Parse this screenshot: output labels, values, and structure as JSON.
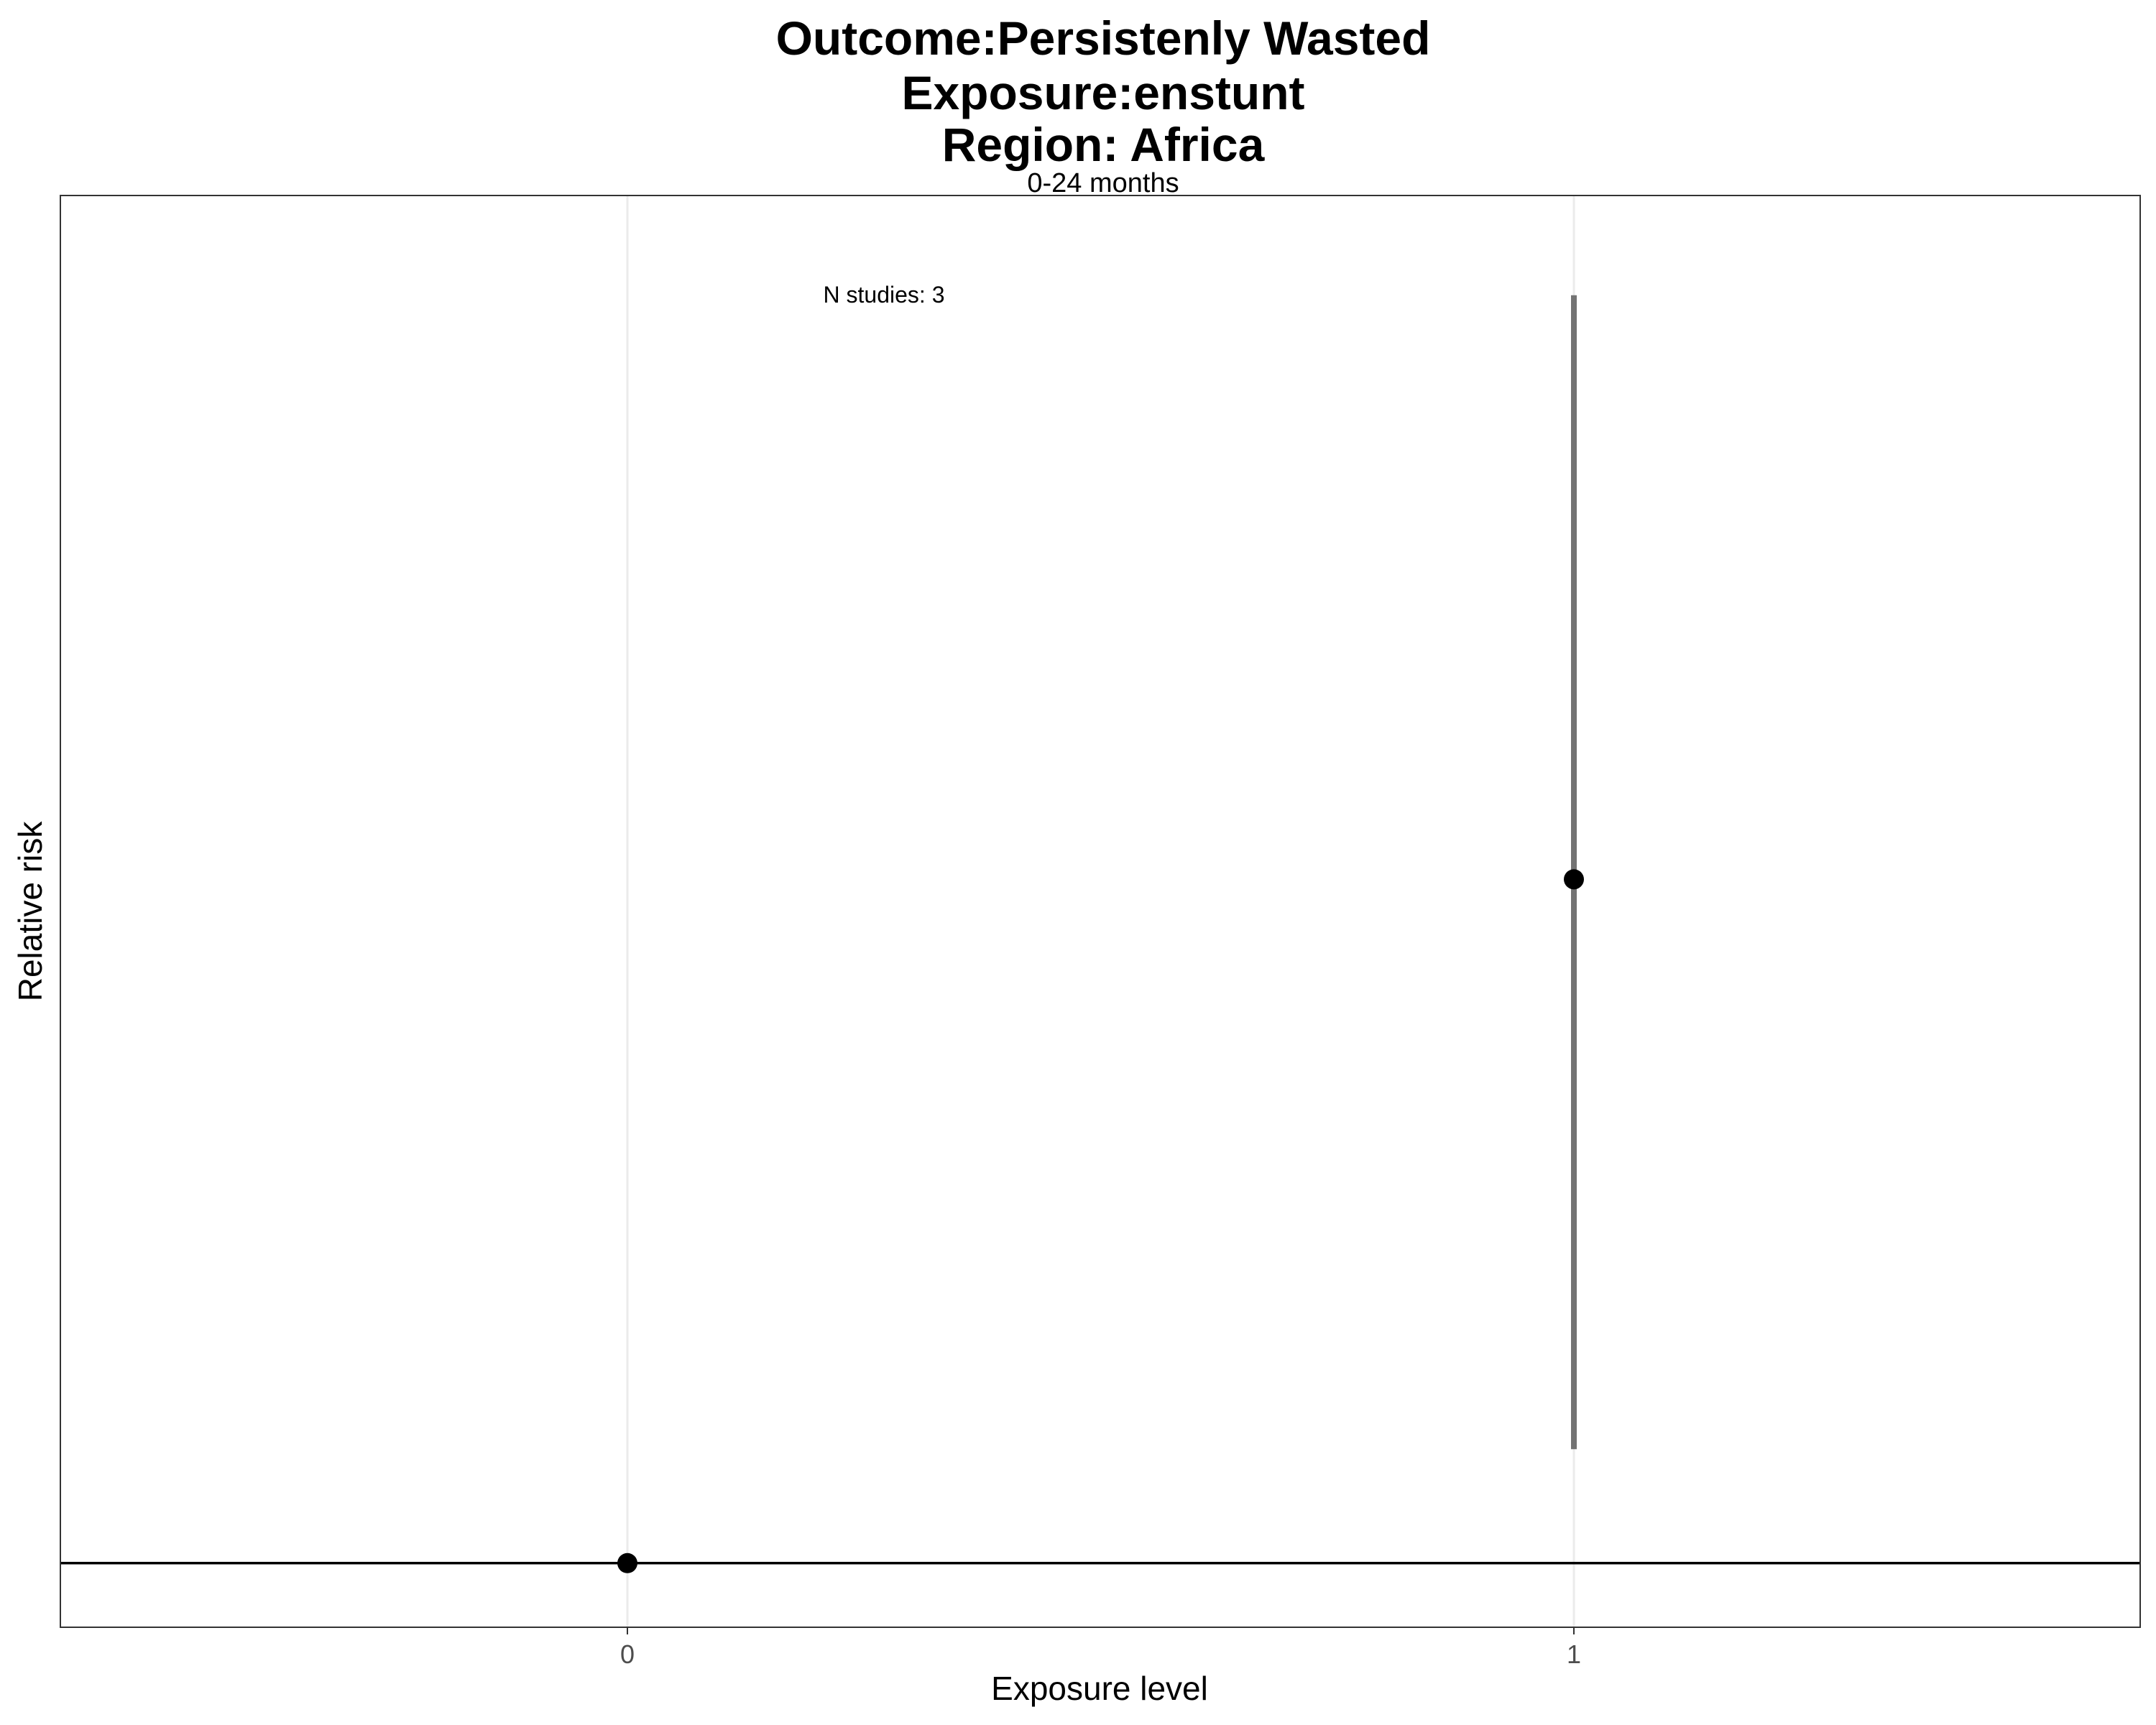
{
  "chart_data": {
    "type": "scatter",
    "title_lines": [
      "Outcome:Persistenly Wasted",
      "Exposure:enstunt",
      "Region: Africa"
    ],
    "subtitle": "0-24 months",
    "xlabel": "Exposure level",
    "ylabel": "Relative risk",
    "categories": [
      "0",
      "1"
    ],
    "points": [
      {
        "x": "0",
        "estimate": 1.0
      },
      {
        "x": "1",
        "estimate": 1.96,
        "ci_lower": 1.16,
        "ci_upper": 2.78
      }
    ],
    "reference_line": 1.0,
    "ylim": [
      0.91,
      2.92
    ],
    "y_ticks_shown": false,
    "grid": "vertical major only",
    "annotation": "N studies: 3",
    "colors": {
      "point": "#000000",
      "errorbar": "#737373",
      "reference_line": "#000000",
      "grid": "#ebebeb",
      "panel_border": "#333333"
    }
  }
}
